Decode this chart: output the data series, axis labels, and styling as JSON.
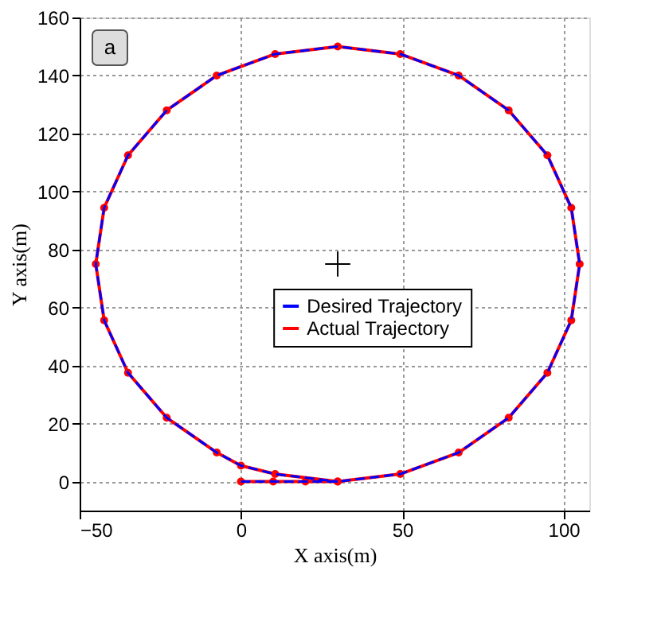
{
  "chart_data": {
    "type": "line",
    "xlabel": "X axis(m)",
    "ylabel": "Y axis(m)",
    "annotations": [
      "a"
    ],
    "xlim": [
      -50,
      108
    ],
    "xticks": [
      -50,
      0,
      50,
      100
    ],
    "ylim": [
      -10,
      160
    ],
    "yticks": [
      0,
      20,
      40,
      60,
      80,
      100,
      120,
      140,
      160
    ],
    "grid": true,
    "legend": "center",
    "series": [
      {
        "name": "Desired Trajectory",
        "color": "#0000ff",
        "line_style": "dashed",
        "marker": "none",
        "x": [
          0,
          10,
          20,
          30,
          49.4,
          67.5,
          83.0,
          95.0,
          102.4,
          105,
          102.4,
          95.0,
          83.0,
          67.5,
          49.4,
          30,
          10.6,
          -7.5,
          -23.0,
          -35.0,
          -42.4,
          -45,
          -42.4,
          -35,
          -23,
          -7.5,
          0,
          10.6,
          30
        ],
        "values": [
          0,
          0,
          0,
          0,
          2.6,
          10.0,
          22.0,
          37.5,
          55.6,
          75,
          94.4,
          112.5,
          128.0,
          140.0,
          147.4,
          150,
          147.4,
          140.0,
          128.0,
          112.5,
          94.4,
          75,
          55.6,
          37.5,
          22,
          10,
          5.5,
          2.6,
          0
        ]
      },
      {
        "name": "Actual Trajectory",
        "color": "#ff0000",
        "line_style": "solid",
        "marker": "circle",
        "x": [
          0,
          10,
          20,
          30,
          49.4,
          67.5,
          83.0,
          95.0,
          102.4,
          105,
          102.4,
          95.0,
          83.0,
          67.5,
          49.4,
          30,
          10.6,
          -7.5,
          -23.0,
          -35.0,
          -42.4,
          -45,
          -42.4,
          -35,
          -23,
          -7.5,
          0,
          10.6,
          30
        ],
        "values": [
          0,
          0,
          0,
          0,
          2.6,
          10.0,
          22.0,
          37.5,
          55.6,
          75,
          94.4,
          112.5,
          128.0,
          140.0,
          147.4,
          150,
          147.4,
          140.0,
          128.0,
          112.5,
          94.4,
          75,
          55.6,
          37.5,
          22,
          10,
          5.5,
          2.6,
          0
        ]
      },
      {
        "type": "scatter",
        "color": "#000000",
        "marker": "cross",
        "x": [
          30
        ],
        "values": [
          75
        ]
      }
    ]
  }
}
